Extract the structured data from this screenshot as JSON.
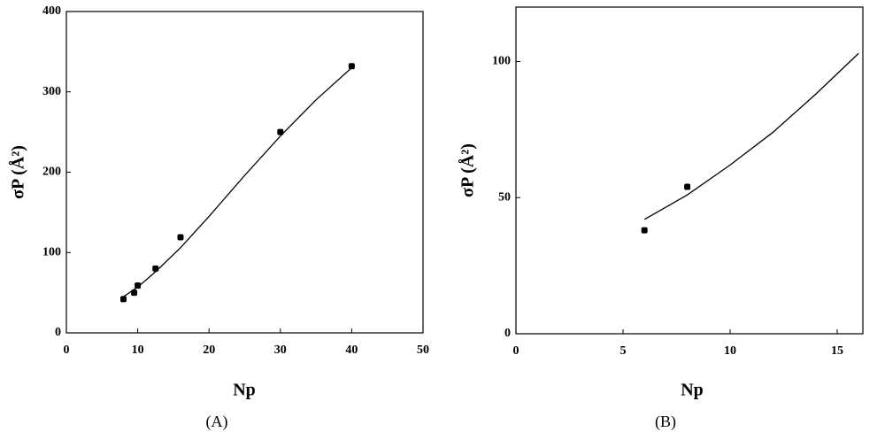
{
  "chart_data": [
    {
      "type": "scatter",
      "x_label": "Np",
      "y_label": "σP (Å²)",
      "caption": "(A)",
      "points": {
        "x": [
          8,
          9.5,
          10,
          12.5,
          16,
          30,
          40
        ],
        "y": [
          42,
          50,
          59,
          80,
          119,
          250,
          332
        ],
        "color": "#000000"
      },
      "fit": {
        "x": [
          8,
          10,
          12.5,
          16,
          20,
          25,
          30,
          35,
          40
        ],
        "y": [
          45,
          57,
          76,
          106,
          145,
          196,
          245,
          290,
          330
        ],
        "color": "#000000"
      },
      "xlim": [
        0,
        50
      ],
      "ylim": [
        0,
        400
      ],
      "xticks": [
        0,
        10,
        20,
        30,
        40,
        50
      ],
      "yticks": [
        0,
        100,
        200,
        300,
        400
      ]
    },
    {
      "type": "scatter",
      "x_label": "Np",
      "y_label": "σP (Å²)",
      "caption": "(B)",
      "points": {
        "x": [
          6,
          8
        ],
        "y": [
          38,
          54
        ],
        "color": "#000000"
      },
      "fit": {
        "x": [
          6,
          8,
          10,
          12,
          14,
          16
        ],
        "y": [
          42,
          51,
          62,
          74,
          88,
          103
        ],
        "color": "#000000"
      },
      "xlim": [
        0,
        16.2
      ],
      "ylim": [
        0,
        120
      ],
      "xticks": [
        0,
        5,
        10,
        15
      ],
      "yticks": [
        0,
        50,
        100
      ]
    }
  ]
}
